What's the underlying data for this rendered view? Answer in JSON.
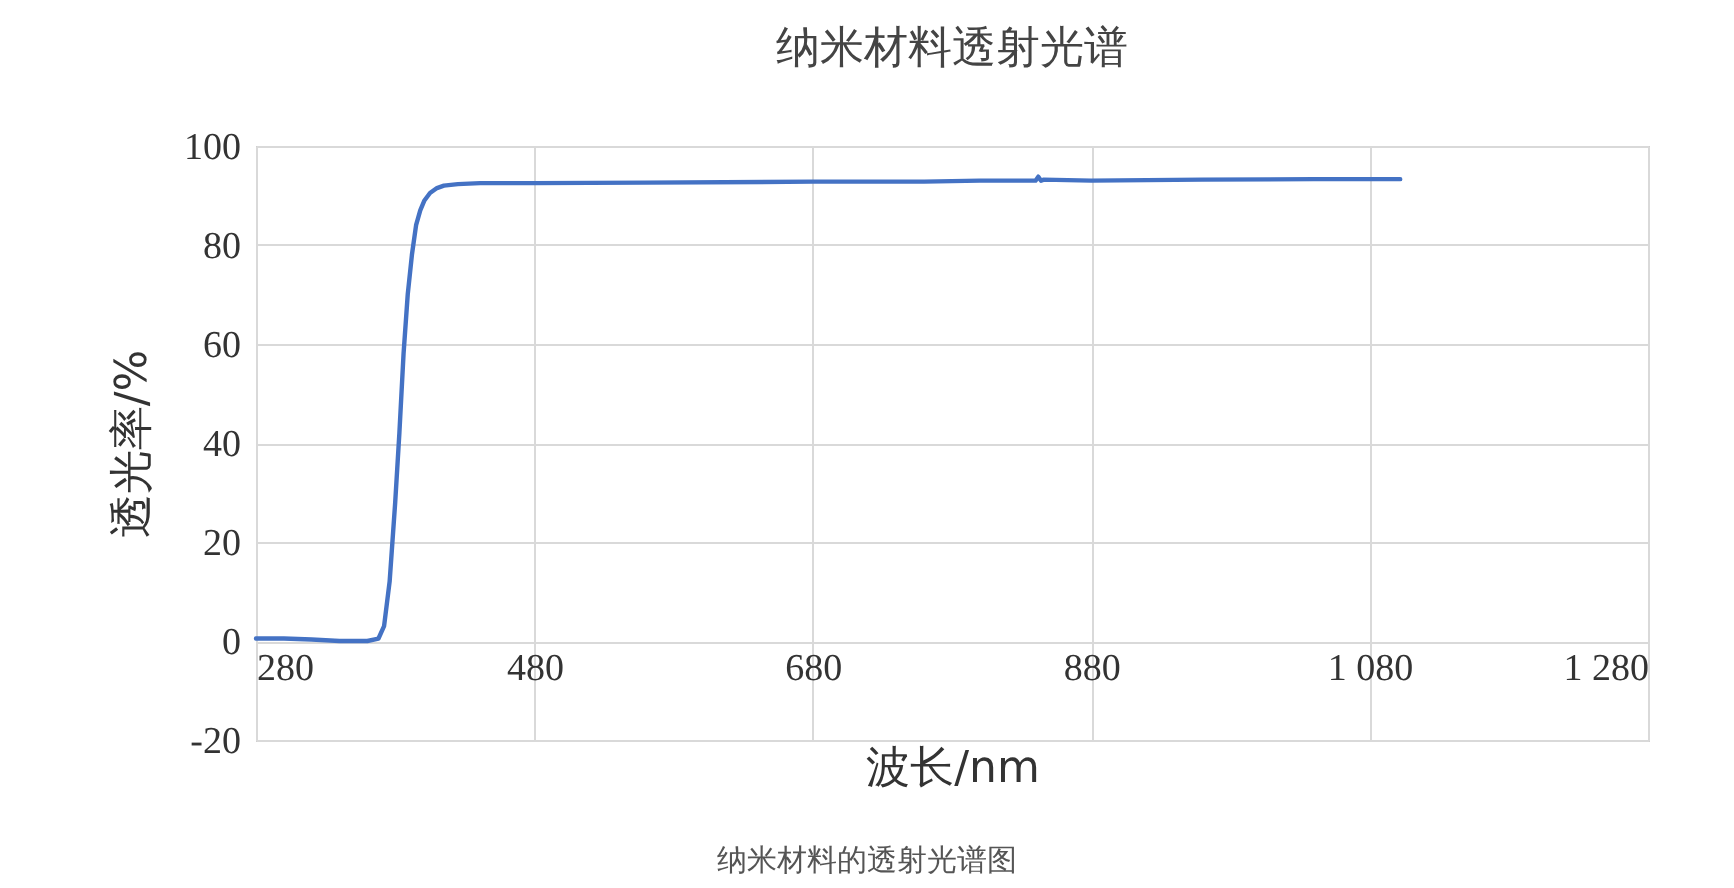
{
  "chart_data": {
    "type": "line",
    "title": "纳米材料透射光谱",
    "xlabel": "波长/nm",
    "ylabel": "透光率/%",
    "annotations": [
      "纳米材料的透射光谱图"
    ],
    "series": [
      {
        "color": "#4472c4",
        "x": [
          280,
          300,
          320,
          340,
          360,
          368,
          372,
          376,
          380,
          383,
          386,
          389,
          392,
          395,
          398,
          401,
          405,
          410,
          415,
          425,
          441,
          480,
          560,
          680,
          760,
          800,
          840,
          842,
          844,
          846,
          880,
          960,
          1040,
          1102
        ],
        "values": [
          0.5,
          0.5,
          0.3,
          0,
          0,
          0.5,
          3,
          12,
          28,
          42,
          58,
          70,
          78,
          84,
          87,
          89,
          90.5,
          91.5,
          92,
          92.3,
          92.5,
          92.5,
          92.6,
          92.8,
          92.8,
          93,
          93,
          93.8,
          93,
          93.2,
          93,
          93.2,
          93.3,
          93.3
        ]
      }
    ],
    "xlim": [
      280,
      1280
    ],
    "xticks": [
      280,
      480,
      680,
      880,
      {
        "value": 1080,
        "label": "1 080"
      },
      {
        "value": 1280,
        "label": "1 280"
      }
    ],
    "ylim": [
      -20,
      100
    ],
    "yticks": [
      -20,
      0,
      20,
      40,
      60,
      80,
      100
    ],
    "grid": true,
    "line_style": "solid",
    "marker": "none"
  }
}
